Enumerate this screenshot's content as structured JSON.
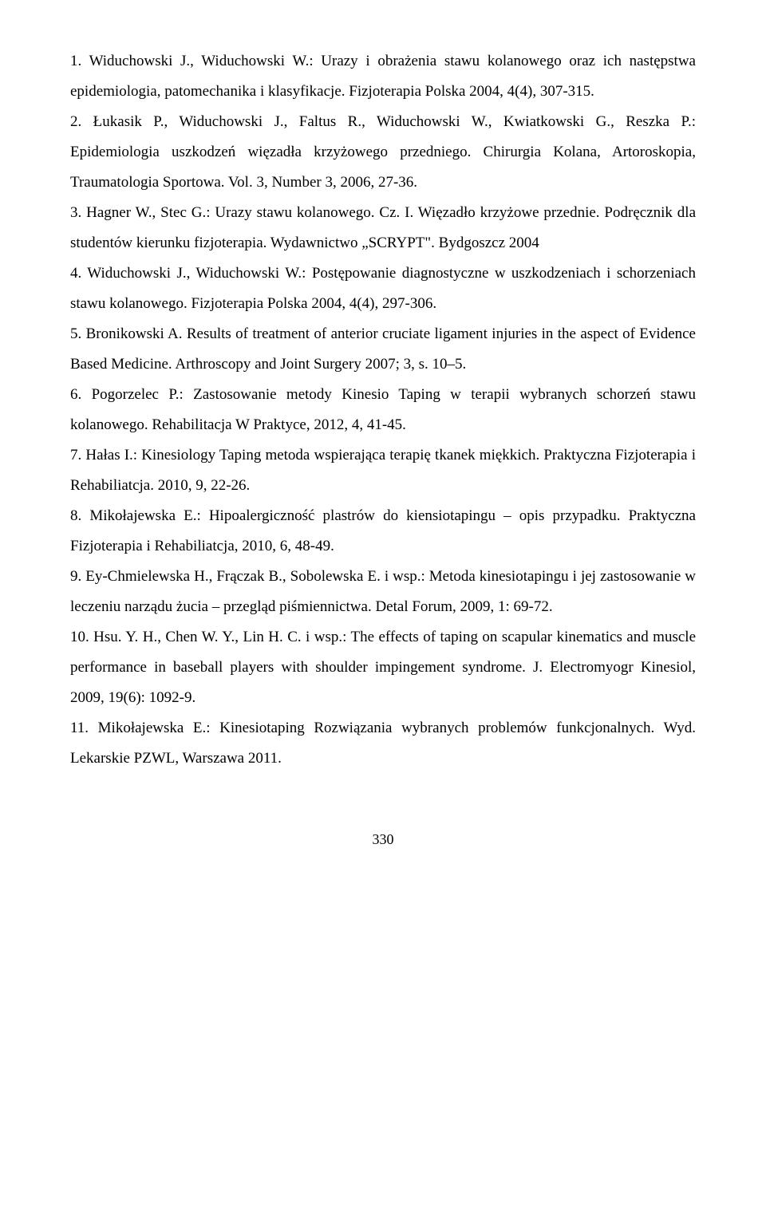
{
  "typography": {
    "font_family": "Times New Roman",
    "body_fontsize_pt": 14,
    "line_height": 2.0,
    "text_color": "#000000",
    "background_color": "#ffffff",
    "text_align": "justify"
  },
  "page_number": "330",
  "references": [
    "1. Widuchowski J., Widuchowski W.: Urazy i obrażenia stawu kolanowego oraz ich następstwa epidemiologia, patomechanika i klasyfikacje. Fizjoterapia Polska 2004, 4(4), 307-315.",
    "2. Łukasik P., Widuchowski J., Faltus R., Widuchowski W., Kwiatkowski G., Reszka P.: Epidemiologia uszkodzeń więzadła krzyżowego przedniego. Chirurgia Kolana, Artoroskopia, Traumatologia Sportowa. Vol. 3, Number 3, 2006, 27-36.",
    "3. Hagner W., Stec G.: Urazy stawu kolanowego. Cz. I. Więzadło krzyżowe przednie. Podręcznik dla studentów kierunku fizjoterapia. Wydawnictwo „SCRYPT\". Bydgoszcz 2004",
    "4. Widuchowski J., Widuchowski W.: Postępowanie diagnostyczne w uszkodzeniach i schorzeniach stawu kolanowego. Fizjoterapia Polska 2004, 4(4), 297-306.",
    "5. Bronikowski A. Results of treatment of anterior cruciate ligament injuries in the aspect of Evidence Based Medicine. Arthroscopy and Joint Surgery 2007; 3, s. 10–5.",
    "6. Pogorzelec P.: Zastosowanie metody Kinesio Taping w terapii wybranych schorzeń stawu kolanowego. Rehabilitacja W Praktyce, 2012, 4, 41-45.",
    "7. Hałas I.: Kinesiology Taping metoda wspierająca terapię tkanek miękkich. Praktyczna Fizjoterapia i Rehabiliatcja. 2010, 9, 22-26.",
    "8. Mikołajewska E.: Hipoalergiczność plastrów do kiensiotapingu – opis przypadku. Praktyczna Fizjoterapia i Rehabiliatcja, 2010, 6, 48-49.",
    "9. Ey-Chmielewska H., Frączak B., Sobolewska E. i wsp.: Metoda kinesiotapingu i jej zastosowanie w leczeniu narządu żucia – przegląd piśmiennictwa. Detal Forum, 2009, 1: 69-72.",
    "10. Hsu. Y. H., Chen W. Y., Lin H. C. i wsp.: The effects of taping on scapular kinematics and muscle performance in baseball players with shoulder impingement syndrome. J. Electromyogr Kinesiol, 2009, 19(6): 1092-9.",
    "11. Mikołajewska E.: Kinesiotaping Rozwiązania wybranych problemów funkcjonalnych. Wyd. Lekarskie PZWL, Warszawa 2011."
  ]
}
